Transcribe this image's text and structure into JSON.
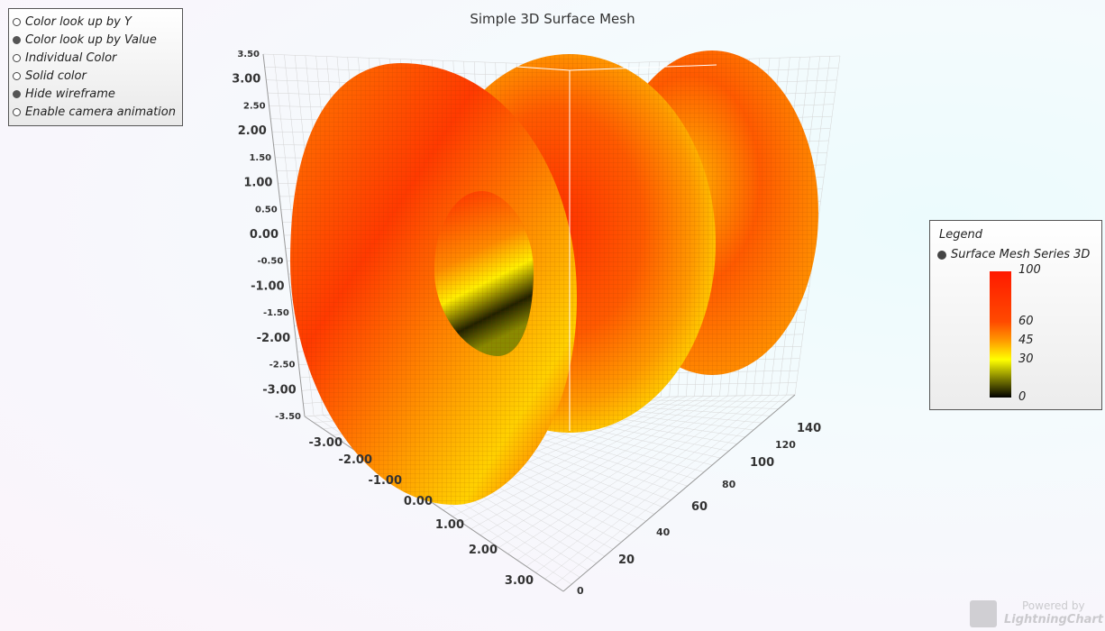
{
  "window": {
    "title": "Simple 3D Surface Mesh"
  },
  "options": [
    {
      "label": "Color look up by Y",
      "selected": false
    },
    {
      "label": "Color look up by Value",
      "selected": true
    },
    {
      "label": "Individual Color",
      "selected": false
    },
    {
      "label": "Solid color",
      "selected": false
    },
    {
      "label": "Hide wireframe",
      "selected": true
    },
    {
      "label": "Enable camera animation",
      "selected": false
    }
  ],
  "legend": {
    "title": "Legend",
    "series_name": "Surface Mesh Series 3D",
    "scale_labels": [
      "100",
      "60",
      "45",
      "30",
      "0"
    ]
  },
  "watermark": {
    "line1": "Powered by",
    "line2": "LightningChart"
  },
  "chart_data": {
    "type": "surface3d",
    "title": "Simple 3D Surface Mesh",
    "y_ticks": [
      "3.50",
      "3.00",
      "2.50",
      "2.00",
      "1.50",
      "1.00",
      "0.50",
      "0.00",
      "-0.50",
      "-1.00",
      "-1.50",
      "-2.00",
      "-2.50",
      "-3.00",
      "-3.50"
    ],
    "x_ticks": [
      "-3.00",
      "-2.00",
      "-1.00",
      "0.00",
      "1.00",
      "2.00",
      "3.00"
    ],
    "z_ticks": [
      "0",
      "20",
      "40",
      "60",
      "80",
      "100",
      "120",
      "140"
    ],
    "ylim": [
      -3.5,
      3.5
    ],
    "xlim": [
      -3,
      3
    ],
    "zlim": [
      0,
      140
    ],
    "color_scale": [
      {
        "value": 0,
        "color": "#000000"
      },
      {
        "value": 30,
        "color": "#ffff00"
      },
      {
        "value": 45,
        "color": "#ff9a00"
      },
      {
        "value": 60,
        "color": "#ff4a00"
      },
      {
        "value": 100,
        "color": "#ff1a00"
      }
    ],
    "grid": true
  }
}
